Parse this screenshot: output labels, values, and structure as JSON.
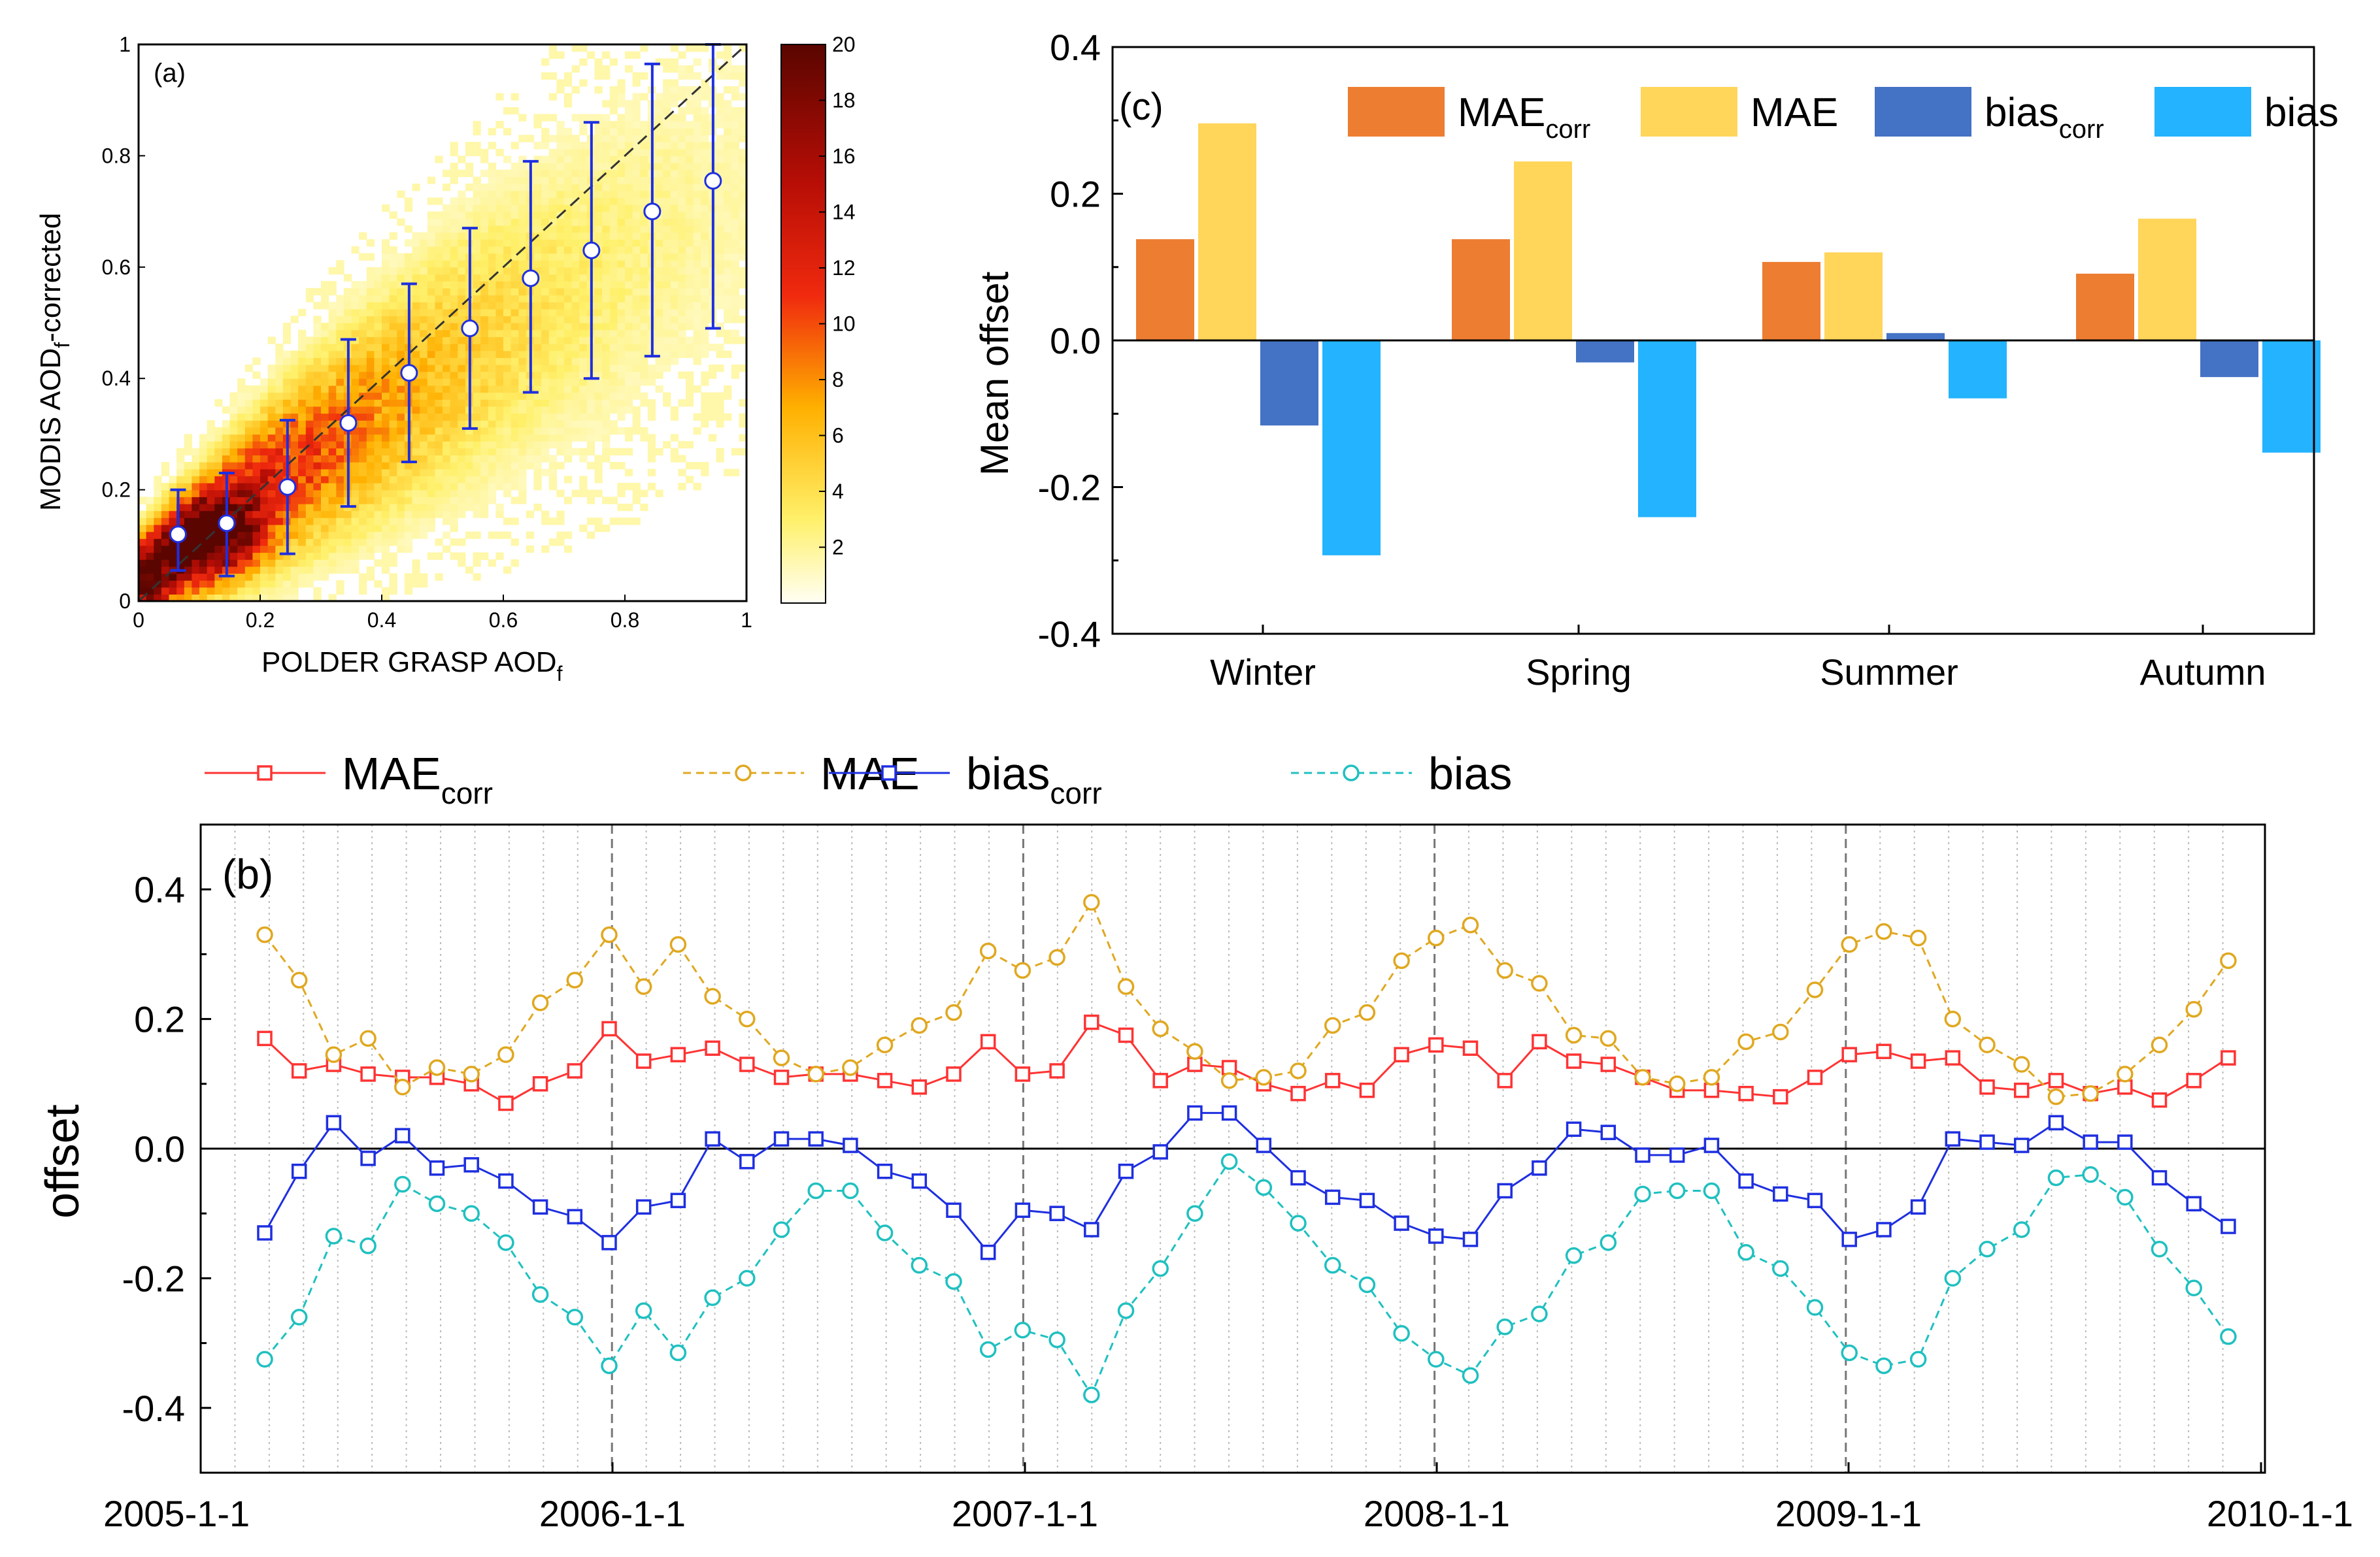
{
  "chart_data": [
    {
      "panel": "a",
      "type": "heatmap",
      "panel_label": "(a)",
      "xlabel": "POLDER GRASP AOD",
      "xlabel_sub": "f",
      "ylabel_pre": "MODIS AOD",
      "ylabel_sub": "f",
      "ylabel_post": "-corrected",
      "xlim": [
        0,
        1
      ],
      "ylim": [
        0,
        1
      ],
      "x_ticks": [
        "0",
        "0.2",
        "0.4",
        "0.6",
        "0.8",
        "1"
      ],
      "y_ticks": [
        "0",
        "0.2",
        "0.4",
        "0.6",
        "0.8",
        "1"
      ],
      "colorbar": {
        "min": 0,
        "max": 20,
        "ticks": [
          "2",
          "4",
          "6",
          "8",
          "10",
          "12",
          "14",
          "16",
          "18",
          "20"
        ]
      },
      "one_to_one_line": true,
      "binned_means": [
        {
          "x": 0.065,
          "y": 0.12,
          "y_low": 0.055,
          "y_high": 0.2
        },
        {
          "x": 0.145,
          "y": 0.14,
          "y_low": 0.045,
          "y_high": 0.23
        },
        {
          "x": 0.245,
          "y": 0.205,
          "y_low": 0.085,
          "y_high": 0.325
        },
        {
          "x": 0.345,
          "y": 0.32,
          "y_low": 0.17,
          "y_high": 0.47
        },
        {
          "x": 0.445,
          "y": 0.41,
          "y_low": 0.25,
          "y_high": 0.57
        },
        {
          "x": 0.545,
          "y": 0.49,
          "y_low": 0.31,
          "y_high": 0.67
        },
        {
          "x": 0.645,
          "y": 0.58,
          "y_low": 0.375,
          "y_high": 0.79
        },
        {
          "x": 0.745,
          "y": 0.63,
          "y_low": 0.4,
          "y_high": 0.86
        },
        {
          "x": 0.845,
          "y": 0.7,
          "y_low": 0.44,
          "y_high": 0.965
        },
        {
          "x": 0.945,
          "y": 0.755,
          "y_low": 0.49,
          "y_high": 1.0
        }
      ]
    },
    {
      "panel": "c",
      "type": "bar",
      "panel_label": "(c)",
      "ylabel": "Mean offset",
      "ylim": [
        -0.4,
        0.4
      ],
      "y_ticks": [
        "0.4",
        "0.2",
        "0.0",
        "-0.2",
        "-0.4"
      ],
      "categories": [
        "Winter",
        "Spring",
        "Summer",
        "Autumn"
      ],
      "series": [
        {
          "name": "MAE",
          "sub": "corr",
          "color": "#ED7D31",
          "values": [
            0.138,
            0.138,
            0.107,
            0.091
          ]
        },
        {
          "name": "MAE",
          "sub": "",
          "color": "#FFD55A",
          "values": [
            0.296,
            0.244,
            0.12,
            0.166
          ]
        },
        {
          "name": "bias",
          "sub": "corr",
          "color": "#4472C4",
          "values": [
            -0.116,
            -0.03,
            0.01,
            -0.05
          ]
        },
        {
          "name": "bias",
          "sub": "",
          "color": "#23B3FF",
          "values": [
            -0.293,
            -0.241,
            -0.079,
            -0.153
          ]
        }
      ]
    },
    {
      "panel": "b",
      "type": "line",
      "panel_label": "(b)",
      "ylabel": "offset",
      "ylim": [
        -0.5,
        0.5
      ],
      "y_ticks": [
        "0.4",
        "0.2",
        "0.0",
        "-0.2",
        "-0.4"
      ],
      "x_ticks": [
        "2005-1-1",
        "2006-1-1",
        "2007-1-1",
        "2008-1-1",
        "2009-1-1",
        "2010-1-1"
      ],
      "x_start": "2005-01",
      "series": [
        {
          "name": "MAE",
          "sub": "corr",
          "color": "#FF3333",
          "marker": "square",
          "dashed": false,
          "values": [
            0.17,
            0.12,
            0.13,
            0.115,
            0.11,
            0.11,
            0.1,
            0.07,
            0.1,
            0.12,
            0.185,
            0.135,
            0.145,
            0.155,
            0.13,
            0.11,
            0.115,
            0.115,
            0.105,
            0.095,
            0.115,
            0.165,
            0.115,
            0.12,
            0.195,
            0.175,
            0.105,
            0.13,
            0.125,
            0.1,
            0.085,
            0.105,
            0.09,
            0.145,
            0.16,
            0.155,
            0.105,
            0.165,
            0.135,
            0.13,
            0.11,
            0.09,
            0.09,
            0.085,
            0.08,
            0.11,
            0.145,
            0.15,
            0.135,
            0.14,
            0.095,
            0.09,
            0.105,
            0.085,
            0.095,
            0.075,
            0.105,
            0.14
          ]
        },
        {
          "name": "MAE",
          "sub": "",
          "color": "#E0A820",
          "marker": "circle",
          "dashed": true,
          "values": [
            0.33,
            0.26,
            0.145,
            0.17,
            0.095,
            0.125,
            0.115,
            0.145,
            0.225,
            0.26,
            0.33,
            0.25,
            0.315,
            0.235,
            0.2,
            0.14,
            0.115,
            0.125,
            0.16,
            0.19,
            0.21,
            0.305,
            0.275,
            0.295,
            0.38,
            0.25,
            0.185,
            0.15,
            0.105,
            0.11,
            0.12,
            0.19,
            0.21,
            0.29,
            0.325,
            0.345,
            0.275,
            0.255,
            0.175,
            0.17,
            0.11,
            0.1,
            0.11,
            0.165,
            0.18,
            0.245,
            0.315,
            0.335,
            0.325,
            0.2,
            0.16,
            0.13,
            0.08,
            0.085,
            0.115,
            0.16,
            0.215,
            0.29
          ]
        },
        {
          "name": "bias",
          "sub": "corr",
          "color": "#1E2FE0",
          "marker": "square",
          "dashed": false,
          "values": [
            -0.13,
            -0.035,
            0.04,
            -0.015,
            0.02,
            -0.03,
            -0.025,
            -0.05,
            -0.09,
            -0.105,
            -0.145,
            -0.09,
            -0.08,
            0.015,
            -0.02,
            0.015,
            0.015,
            0.005,
            -0.035,
            -0.05,
            -0.095,
            -0.16,
            -0.095,
            -0.1,
            -0.125,
            -0.035,
            -0.005,
            0.055,
            0.055,
            0.005,
            -0.045,
            -0.075,
            -0.08,
            -0.115,
            -0.135,
            -0.14,
            -0.065,
            -0.03,
            0.03,
            0.025,
            -0.01,
            -0.01,
            0.005,
            -0.05,
            -0.07,
            -0.08,
            -0.14,
            -0.125,
            -0.09,
            0.015,
            0.01,
            0.005,
            0.04,
            0.01,
            0.01,
            -0.045,
            -0.085,
            -0.12
          ]
        },
        {
          "name": "bias",
          "sub": "",
          "color": "#20C0C0",
          "marker": "circle",
          "dashed": true,
          "values": [
            -0.325,
            -0.26,
            -0.135,
            -0.15,
            -0.055,
            -0.085,
            -0.1,
            -0.145,
            -0.225,
            -0.26,
            -0.335,
            -0.25,
            -0.315,
            -0.23,
            -0.2,
            -0.125,
            -0.065,
            -0.065,
            -0.13,
            -0.18,
            -0.205,
            -0.31,
            -0.28,
            -0.295,
            -0.38,
            -0.25,
            -0.185,
            -0.1,
            -0.02,
            -0.06,
            -0.115,
            -0.18,
            -0.21,
            -0.285,
            -0.325,
            -0.35,
            -0.275,
            -0.255,
            -0.165,
            -0.145,
            -0.07,
            -0.065,
            -0.065,
            -0.16,
            -0.185,
            -0.245,
            -0.315,
            -0.335,
            -0.325,
            -0.2,
            -0.155,
            -0.125,
            -0.045,
            -0.04,
            -0.075,
            -0.155,
            -0.215,
            -0.29
          ]
        }
      ]
    }
  ]
}
